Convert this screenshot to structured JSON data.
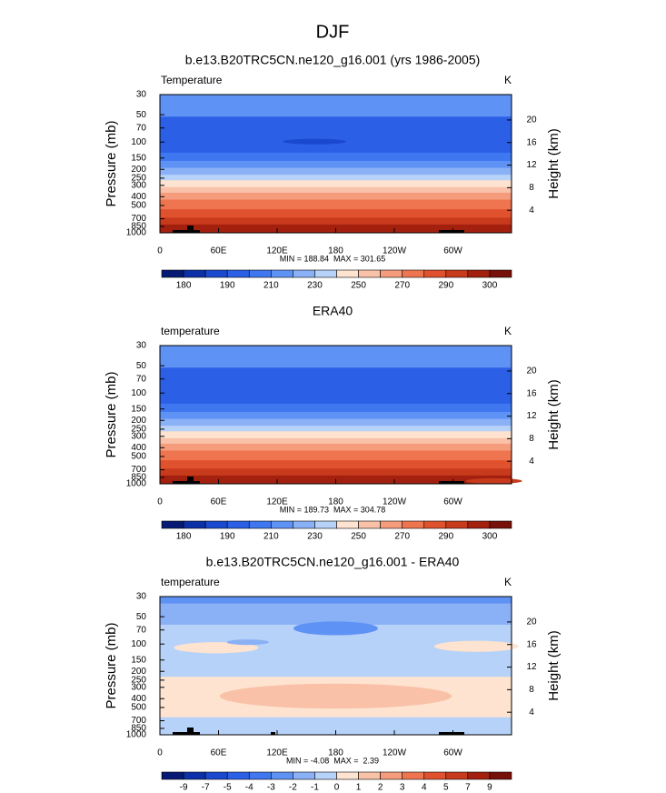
{
  "title": "DJF",
  "chart_data": [
    {
      "type": "contour",
      "title": "b.e13.B20TRC5CN.ne120_g16.001 (yrs 1986-2005)",
      "left_label": "Temperature",
      "right_label": "K",
      "y_label": "Pressure (mb)",
      "y2_label": "Height (km)",
      "log_y": true,
      "ylim": [
        1000,
        30
      ],
      "yticks": [
        30,
        50,
        70,
        100,
        150,
        200,
        250,
        300,
        400,
        500,
        700,
        850,
        1000
      ],
      "y2lim": [
        0,
        24.5
      ],
      "y2ticks": [
        20,
        16,
        12,
        8,
        4
      ],
      "xlim": [
        0,
        360
      ],
      "xticks": [
        0,
        {
          "value": 60,
          "label": "60E"
        },
        {
          "value": 120,
          "label": "120E"
        },
        180,
        {
          "value": 240,
          "label": "120W"
        },
        {
          "value": 300,
          "label": "60W"
        }
      ],
      "stats": "MIN = 188.84  MAX = 301.65",
      "colorbar": {
        "labels": [
          180,
          190,
          210,
          230,
          250,
          270,
          290,
          300
        ],
        "colors": [
          "#061a75",
          "#0c30a8",
          "#1a49cf",
          "#2a5fe6",
          "#3e77f0",
          "#5e92f5",
          "#8ab0f6",
          "#b7d2f8",
          "#fde3d0",
          "#f9c2a8",
          "#f59c7c",
          "#ef7550",
          "#e0512e",
          "#c73a1c",
          "#a3200f",
          "#78100a"
        ]
      }
    },
    {
      "type": "contour",
      "title": "ERA40",
      "left_label": "temperature",
      "right_label": "K",
      "y_label": "Pressure (mb)",
      "y2_label": "Height (km)",
      "log_y": true,
      "ylim": [
        1000,
        30
      ],
      "yticks": [
        30,
        50,
        70,
        100,
        150,
        200,
        250,
        300,
        400,
        500,
        700,
        850,
        1000
      ],
      "y2lim": [
        0,
        24.5
      ],
      "y2ticks": [
        20,
        16,
        12,
        8,
        4
      ],
      "xlim": [
        0,
        360
      ],
      "xticks": [
        0,
        {
          "value": 60,
          "label": "60E"
        },
        {
          "value": 120,
          "label": "120E"
        },
        180,
        {
          "value": 240,
          "label": "120W"
        },
        {
          "value": 300,
          "label": "60W"
        }
      ],
      "stats": "MIN = 189.73  MAX = 304.78",
      "colorbar": {
        "labels": [
          180,
          190,
          210,
          230,
          250,
          270,
          290,
          300
        ],
        "colors": [
          "#061a75",
          "#0c30a8",
          "#1a49cf",
          "#2a5fe6",
          "#3e77f0",
          "#5e92f5",
          "#8ab0f6",
          "#b7d2f8",
          "#fde3d0",
          "#f9c2a8",
          "#f59c7c",
          "#ef7550",
          "#e0512e",
          "#c73a1c",
          "#a3200f",
          "#78100a"
        ]
      }
    },
    {
      "type": "contour",
      "title": "b.e13.B20TRC5CN.ne120_g16.001 - ERA40",
      "left_label": "temperature",
      "right_label": "K",
      "y_label": "Pressure (mb)",
      "y2_label": "Height (km)",
      "log_y": true,
      "ylim": [
        1000,
        30
      ],
      "yticks": [
        30,
        50,
        70,
        100,
        150,
        200,
        250,
        300,
        400,
        500,
        700,
        850,
        1000
      ],
      "y2lim": [
        0,
        24.5
      ],
      "y2ticks": [
        20,
        16,
        12,
        8,
        4
      ],
      "xlim": [
        0,
        360
      ],
      "xticks": [
        0,
        {
          "value": 60,
          "label": "60E"
        },
        {
          "value": 120,
          "label": "120E"
        },
        180,
        {
          "value": 240,
          "label": "120W"
        },
        {
          "value": 300,
          "label": "60W"
        }
      ],
      "stats": "MIN = -4.08  MAX =  2.39",
      "colorbar": {
        "labels": [
          -9,
          -7,
          -5,
          -4,
          -3,
          -2,
          -1,
          0,
          1,
          2,
          3,
          4,
          5,
          7,
          9
        ],
        "colors": [
          "#061a75",
          "#0c30a8",
          "#1a49cf",
          "#2a5fe6",
          "#3e77f0",
          "#5e92f5",
          "#8ab0f6",
          "#b7d2f8",
          "#fde3d0",
          "#f9c2a8",
          "#f59c7c",
          "#ef7550",
          "#e0512e",
          "#c73a1c",
          "#a3200f",
          "#78100a"
        ]
      }
    }
  ]
}
